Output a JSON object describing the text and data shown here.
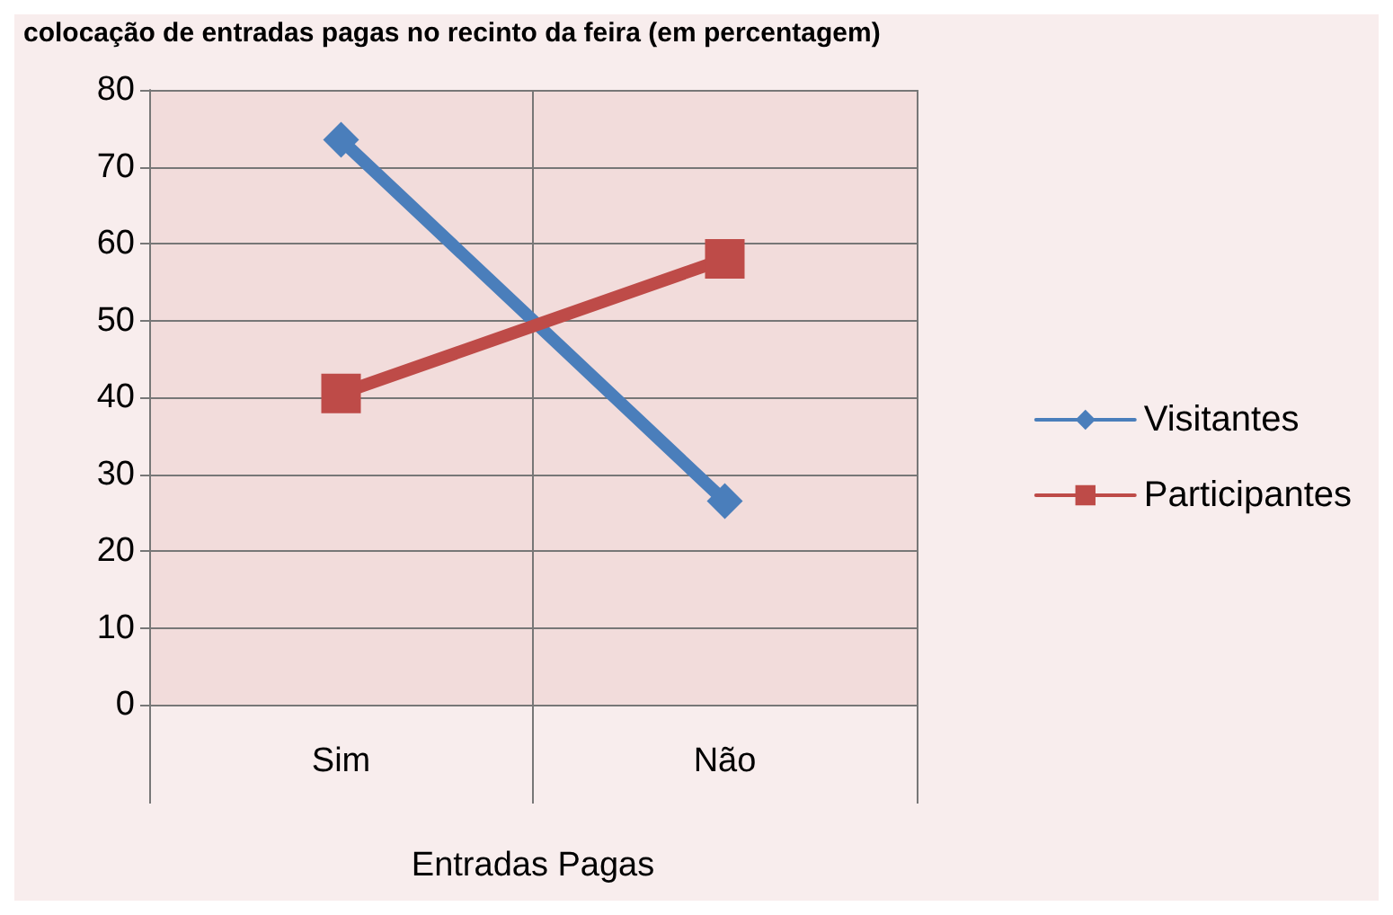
{
  "chart_data": {
    "type": "line",
    "title": "colocação de entradas pagas no recinto da feira (em percentagem)",
    "categories": [
      "Sim",
      "Não"
    ],
    "xlabel": "Entradas Pagas",
    "series": [
      {
        "name": "Visitantes",
        "color": "#4a7ebb",
        "values": [
          73.5,
          26.5
        ],
        "marker": "diamond"
      },
      {
        "name": "Participantes",
        "color": "#be4b48",
        "values": [
          40.5,
          58
        ],
        "marker": "square"
      }
    ],
    "ylim": [
      0,
      80
    ],
    "yticks": [
      0,
      10,
      20,
      30,
      40,
      50,
      60,
      70,
      80
    ],
    "grid": true,
    "legend": "right",
    "line_style": "solid"
  }
}
